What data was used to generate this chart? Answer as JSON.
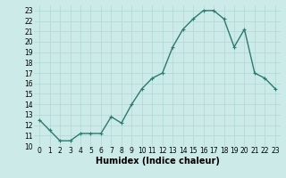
{
  "x": [
    0,
    1,
    2,
    3,
    4,
    5,
    6,
    7,
    8,
    9,
    10,
    11,
    12,
    13,
    14,
    15,
    16,
    17,
    18,
    19,
    20,
    21,
    22,
    23
  ],
  "y": [
    12.5,
    11.5,
    10.5,
    10.5,
    11.2,
    11.2,
    11.2,
    12.8,
    12.2,
    14.0,
    15.5,
    16.5,
    17.0,
    19.5,
    21.2,
    22.2,
    23.0,
    23.0,
    22.2,
    19.5,
    21.2,
    17.0,
    16.5,
    15.5
  ],
  "line_color": "#2d7a6e",
  "marker_color": "#2d7a6e",
  "bg_color": "#cceae7",
  "grid_color": "#b0d8d4",
  "xlabel": "Humidex (Indice chaleur)",
  "ylabel": "",
  "xlim": [
    -0.5,
    23.5
  ],
  "ylim": [
    10,
    23.5
  ],
  "yticks": [
    10,
    11,
    12,
    13,
    14,
    15,
    16,
    17,
    18,
    19,
    20,
    21,
    22,
    23
  ],
  "xticks": [
    0,
    1,
    2,
    3,
    4,
    5,
    6,
    7,
    8,
    9,
    10,
    11,
    12,
    13,
    14,
    15,
    16,
    17,
    18,
    19,
    20,
    21,
    22,
    23
  ],
  "tick_fontsize": 5.5,
  "xlabel_fontsize": 7,
  "marker_size": 3,
  "line_width": 1.0
}
